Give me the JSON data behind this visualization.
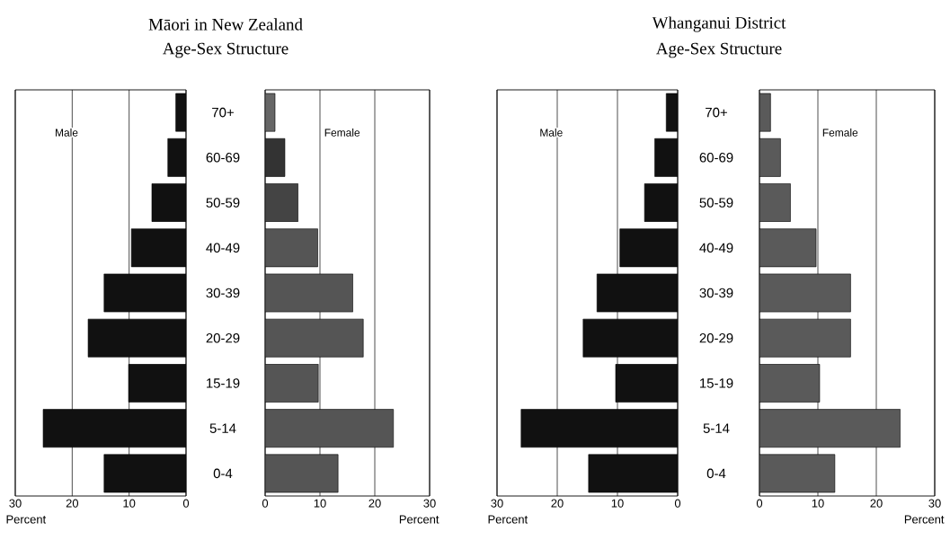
{
  "chart_data": [
    {
      "type": "bar",
      "orientation": "horizontal",
      "title": "Māori in New Zealand",
      "subtitle": "Age-Sex Structure",
      "categories": [
        "70+",
        "60-69",
        "50-59",
        "40-49",
        "30-39",
        "20-29",
        "15-19",
        "5-14",
        "0-4"
      ],
      "series": [
        {
          "name": "Male",
          "color": "#111111",
          "values": [
            1.8,
            3.2,
            6.0,
            9.6,
            14.4,
            17.2,
            10.1,
            25.1,
            14.4
          ]
        }
      ],
      "xlim": [
        30,
        0
      ],
      "xticks": [
        30,
        20,
        10,
        0
      ],
      "xlabel": "Percent",
      "grid": "x"
    },
    {
      "type": "bar",
      "orientation": "horizontal",
      "categories": [
        null,
        null,
        null,
        null,
        null,
        null,
        null,
        null,
        null
      ],
      "series": [
        {
          "name": "Female",
          "colors": [
            "#666666",
            "#333333",
            "#444444",
            "#555555",
            "#555555",
            "#555555",
            "#555555",
            "#555555",
            "#555555"
          ],
          "values": [
            1.8,
            3.6,
            6.0,
            9.6,
            16.0,
            17.9,
            9.7,
            23.4,
            13.3
          ]
        }
      ],
      "xlim": [
        0,
        30
      ],
      "xticks": [
        0,
        10,
        20,
        30
      ],
      "xlabel": "Percent",
      "grid": "x"
    },
    {
      "type": "bar",
      "orientation": "horizontal",
      "title": "Whanganui District",
      "subtitle": "Age-Sex Structure",
      "categories": [
        "70+",
        "60-69",
        "50-59",
        "40-49",
        "30-39",
        "20-29",
        "15-19",
        "5-14",
        "0-4"
      ],
      "series": [
        {
          "name": "Male",
          "color": "#111111",
          "values": [
            1.9,
            3.8,
            5.5,
            9.6,
            13.4,
            15.7,
            10.3,
            26.0,
            14.8
          ]
        }
      ],
      "xlim": [
        30,
        0
      ],
      "xticks": [
        30,
        20,
        10,
        0
      ],
      "xlabel": "Percent",
      "grid": "x"
    },
    {
      "type": "bar",
      "orientation": "horizontal",
      "categories": [
        null,
        null,
        null,
        null,
        null,
        null,
        null,
        null,
        null
      ],
      "series": [
        {
          "name": "Female",
          "color": "#5a5a5a",
          "values": [
            1.9,
            3.6,
            5.3,
            9.7,
            15.6,
            15.6,
            10.3,
            24.1,
            12.9
          ]
        }
      ],
      "xlim": [
        0,
        30
      ],
      "xticks": [
        0,
        10,
        20,
        30
      ],
      "xlabel": "Percent",
      "grid": "x"
    }
  ]
}
